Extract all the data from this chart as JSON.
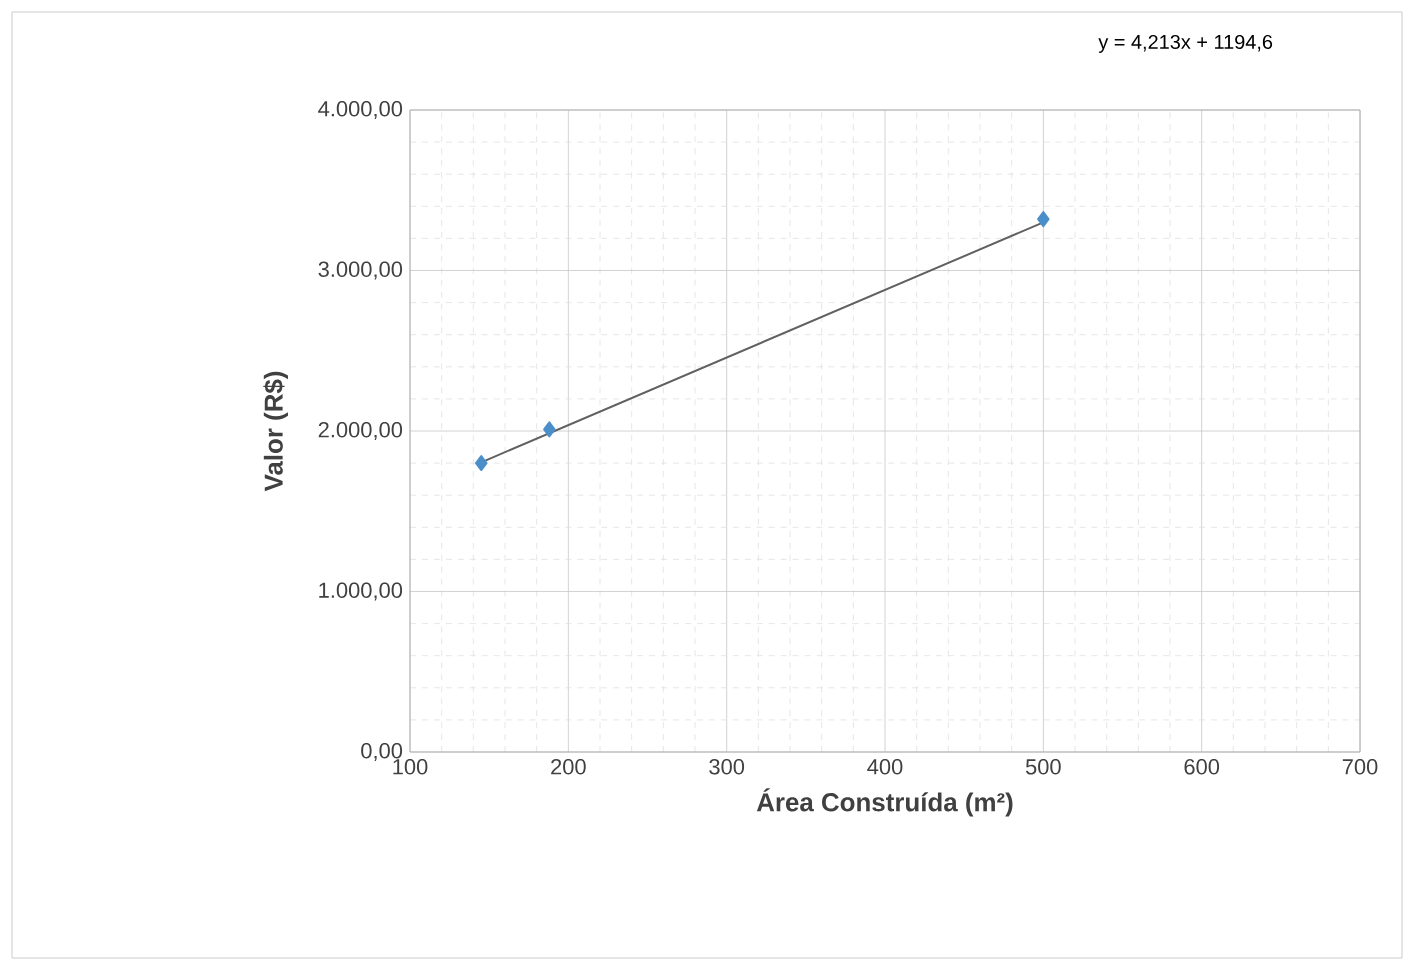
{
  "chart_data": {
    "type": "scatter",
    "xlabel": "Área Construída (m²)",
    "ylabel": "Valor (R$)",
    "annotations": [
      "y = 4,213x + 1194,6"
    ],
    "xlim": [
      100,
      700
    ],
    "xticks": [
      100,
      200,
      300,
      400,
      500,
      600,
      700
    ],
    "ylim": [
      0,
      4000
    ],
    "yticks": [
      {
        "value": 0,
        "label": "0,00"
      },
      {
        "value": 1000,
        "label": "1.000,00"
      },
      {
        "value": 2000,
        "label": "2.000,00"
      },
      {
        "value": 3000,
        "label": "3.000,00"
      },
      {
        "value": 4000,
        "label": "4.000,00"
      }
    ],
    "grid": true,
    "series": [
      {
        "marker": "diamond",
        "color": "#4a8fc9",
        "x": [
          145,
          188,
          500
        ],
        "values": [
          1800,
          2010,
          3320
        ]
      },
      {
        "type": "line",
        "marker": "none",
        "color": "#606060",
        "x": [
          145,
          500
        ],
        "values": [
          1805,
          3300
        ]
      }
    ]
  }
}
